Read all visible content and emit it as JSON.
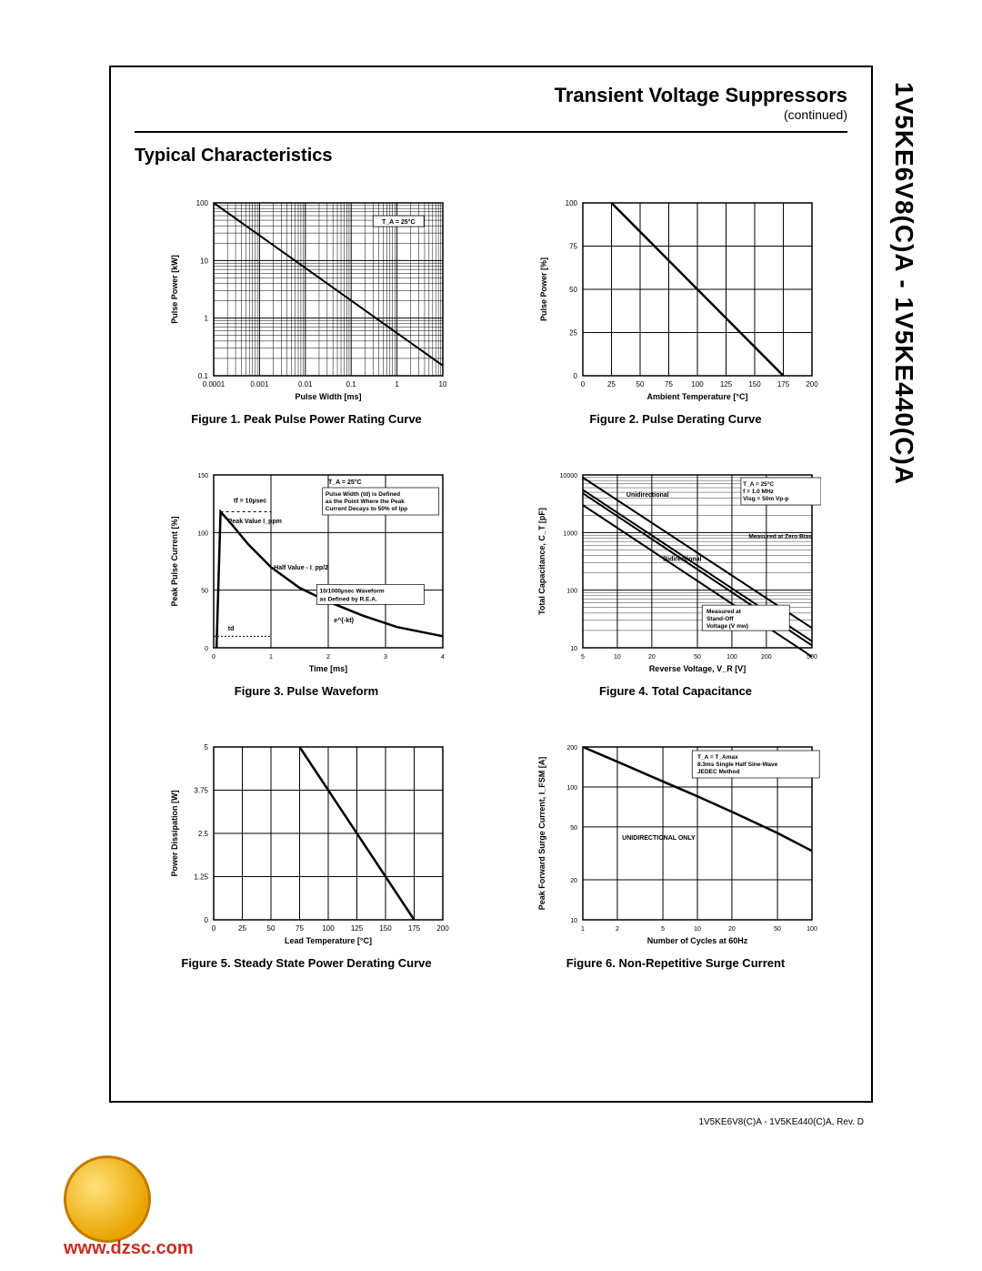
{
  "page": {
    "doc_title": "Transient Voltage Suppressors",
    "doc_sub": "(continued)",
    "section": "Typical Characteristics",
    "part_range": "1V5KE6V8(C)A - 1V5KE440(C)A",
    "footer": "1V5KE6V8(C)A - 1V5KE440(C)A, Rev. D",
    "watermark": "www.dzsc.com"
  },
  "fig1": {
    "type": "line-loglog",
    "caption": "Figure 1. Peak Pulse Power Rating Curve",
    "xlabel": "Pulse Width [ms]",
    "ylabel": "Pulse Power [kW]",
    "x_ticks": [
      "0.0001",
      "0.001",
      "0.01",
      "0.1",
      "1",
      "10"
    ],
    "y_ticks": [
      "0.1",
      "1",
      "10",
      "100"
    ],
    "series": {
      "points": [
        [
          0.0001,
          100
        ],
        [
          10,
          0.15
        ]
      ],
      "width": 2,
      "color": "#000000"
    },
    "annotation": "T_A = 25°C",
    "style": {
      "bg": "#ffffff",
      "grid": "#000000",
      "text_fs": 8,
      "label_fs": 9
    }
  },
  "fig2": {
    "type": "line",
    "caption": "Figure 2. Pulse Derating Curve",
    "xlabel": "Ambient Temperature [°C]",
    "ylabel": "Pulse Power [%]",
    "x_ticks": [
      "0",
      "25",
      "50",
      "75",
      "100",
      "125",
      "150",
      "175",
      "200"
    ],
    "y_ticks": [
      "0",
      "25",
      "50",
      "75",
      "100"
    ],
    "series": {
      "points": [
        [
          25,
          100
        ],
        [
          175,
          0
        ]
      ],
      "width": 2.5,
      "color": "#000000"
    },
    "style": {
      "bg": "#ffffff",
      "grid": "#000000",
      "text_fs": 8,
      "label_fs": 9
    }
  },
  "fig3": {
    "type": "line",
    "caption": "Figure 3. Pulse Waveform",
    "xlabel": "Time [ms]",
    "ylabel": "Peak Pulse Current [%]",
    "x_ticks": [
      "0",
      "1",
      "2",
      "3",
      "4"
    ],
    "y_ticks": [
      "0",
      "50",
      "100",
      "150"
    ],
    "series": {
      "points": [
        [
          0.05,
          0
        ],
        [
          0.12,
          118
        ],
        [
          0.3,
          108
        ],
        [
          0.6,
          90
        ],
        [
          1.0,
          70
        ],
        [
          1.5,
          52
        ],
        [
          2.0,
          40
        ],
        [
          2.6,
          28
        ],
        [
          3.2,
          18
        ],
        [
          4.0,
          10
        ]
      ],
      "width": 2.5,
      "color": "#000000"
    },
    "annotations": [
      "T_A = 25°C",
      "tf = 10µsec",
      "Peak Value  I_ppm",
      "Half Value - I_pp/2",
      "td",
      "e^{-kt}",
      "Pulse Width (td) is Defined",
      "as the Point Where the Peak",
      "Current Decays to 50% of Ipp",
      "10/1000µsec Waveform",
      "as Defined by R.E.A."
    ],
    "style": {
      "bg": "#ffffff",
      "grid": "#000000",
      "text_fs": 7,
      "label_fs": 9
    }
  },
  "fig4": {
    "type": "line-loglog",
    "caption": "Figure 4. Total Capacitance",
    "xlabel": "Reverse Voltage, V_R [V]",
    "ylabel": "Total Capacitance, C_T [pF]",
    "x_ticks": [
      "5",
      "10",
      "20",
      "50",
      "100",
      "200",
      "500"
    ],
    "y_ticks": [
      "10",
      "100",
      "1000",
      "10000"
    ],
    "series": [
      {
        "name": "Unidirectional-ZeroBias",
        "points": [
          [
            5,
            9000
          ],
          [
            500,
            22
          ]
        ],
        "width": 2,
        "color": "#000000"
      },
      {
        "name": "Unidirectional-StandOff",
        "points": [
          [
            5,
            5500
          ],
          [
            500,
            13
          ]
        ],
        "width": 2,
        "color": "#000000"
      },
      {
        "name": "Bidirectional-ZeroBias",
        "points": [
          [
            5,
            4800
          ],
          [
            500,
            11
          ]
        ],
        "width": 2,
        "color": "#000000"
      },
      {
        "name": "Bidirectional-StandOff",
        "points": [
          [
            5,
            3000
          ],
          [
            500,
            7
          ]
        ],
        "width": 2,
        "color": "#000000"
      }
    ],
    "annotations": [
      "T_A = 25°C",
      "f = 1.0 MHz",
      "Visg = 50m Vp-p",
      "Unidirectional",
      "Bidirectional",
      "Measured at Zero Bias",
      "Measured at Stand-Off Voltage (V mw)"
    ],
    "style": {
      "bg": "#ffffff",
      "grid": "#000000",
      "text_fs": 7,
      "label_fs": 9
    }
  },
  "fig5": {
    "type": "line",
    "caption": "Figure 5. Steady State Power Derating Curve",
    "xlabel": "Lead Temperature [°C]",
    "ylabel": "Power Dissipation [W]",
    "x_ticks": [
      "0",
      "25",
      "50",
      "75",
      "100",
      "125",
      "150",
      "175",
      "200"
    ],
    "y_ticks": [
      "0",
      "1.25",
      "2.5",
      "3.75",
      "5"
    ],
    "series": {
      "points": [
        [
          75,
          5
        ],
        [
          175,
          0
        ]
      ],
      "width": 2.5,
      "color": "#000000"
    },
    "style": {
      "bg": "#ffffff",
      "grid": "#000000",
      "text_fs": 8,
      "label_fs": 9
    }
  },
  "fig6": {
    "type": "line-semilogx",
    "caption": "Figure 6. Non-Repetitive Surge Current",
    "xlabel": "Number of Cycles at 60Hz",
    "ylabel": "Peak Forward Surge Current, I_FSM [A]",
    "x_ticks": [
      "1",
      "2",
      "5",
      "10",
      "20",
      "50",
      "100"
    ],
    "y_ticks": [
      "10",
      "20",
      "50",
      "100",
      "200"
    ],
    "series": {
      "points": [
        [
          1,
          200
        ],
        [
          2,
          155
        ],
        [
          5,
          110
        ],
        [
          10,
          85
        ],
        [
          20,
          65
        ],
        [
          50,
          45
        ],
        [
          100,
          33
        ]
      ],
      "width": 2.5,
      "color": "#000000"
    },
    "annotations": [
      "T_A = T_Amax",
      "8.3ms Single Half Sine-Wave",
      "JEDEC Method",
      "UNIDIRECTIONAL ONLY"
    ],
    "style": {
      "bg": "#ffffff",
      "grid": "#000000",
      "text_fs": 7,
      "label_fs": 9
    }
  }
}
